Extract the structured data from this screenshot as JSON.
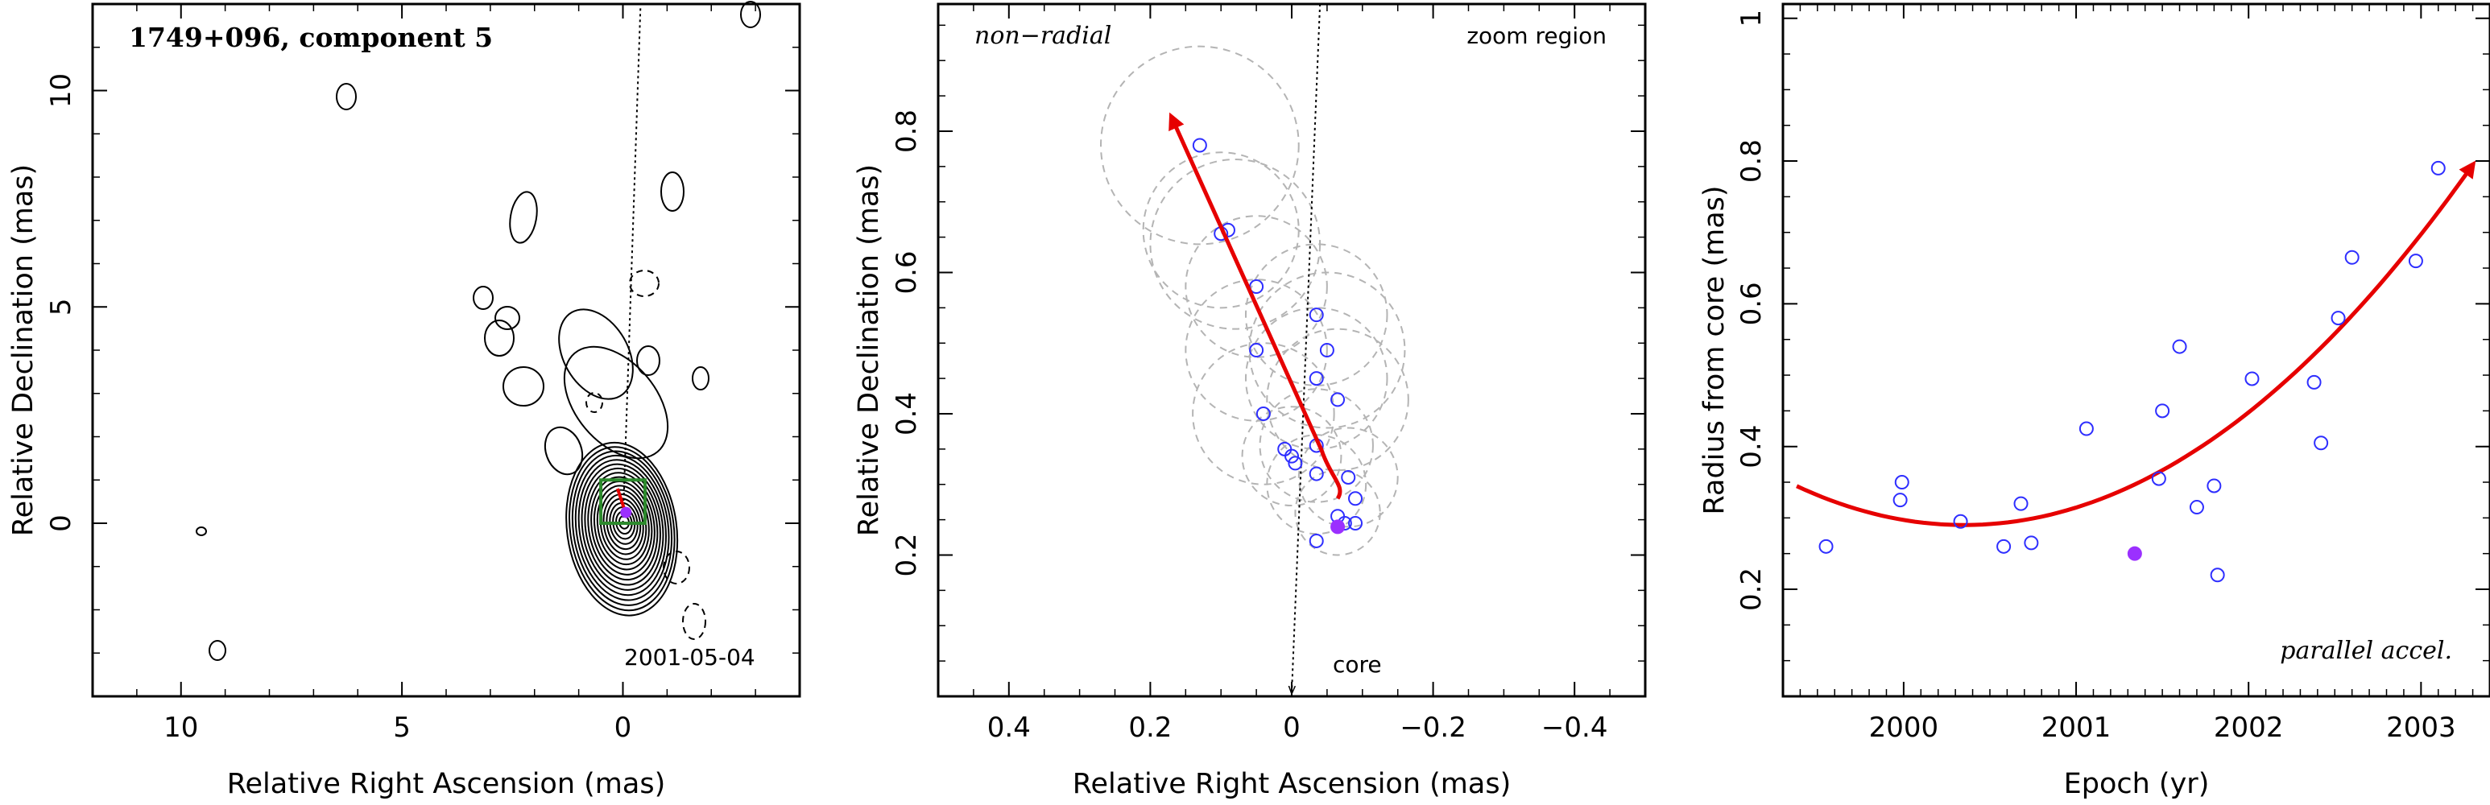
{
  "chart_data": [
    {
      "type": "contour",
      "title": "1749+096, component 5",
      "date_label": "2001-05-04",
      "xlabel": "Relative Right Ascension (mas)",
      "ylabel": "Relative Declination (mas)",
      "xlim": [
        12,
        -4
      ],
      "ylim": [
        -4,
        12
      ],
      "xticks": [
        10,
        5,
        0
      ],
      "yticks": [
        0,
        5,
        10
      ],
      "zoom_box": {
        "x": [
          0.5,
          -0.5
        ],
        "y": [
          0.0,
          1.0
        ],
        "color": "#2d8a2d"
      },
      "radial_line": {
        "from": [
          0,
          0
        ],
        "to": [
          -0.4,
          12
        ]
      },
      "component_marker": {
        "x": -0.07,
        "y": 0.25,
        "color": "#9b30ff"
      }
    },
    {
      "type": "scatter",
      "label_tl": "non−radial",
      "label_tr": "zoom region",
      "core_label": "core",
      "xlabel": "Relative Right Ascension (mas)",
      "ylabel": "Relative Declination (mas)",
      "xlim": [
        0.5,
        -0.5
      ],
      "ylim": [
        0.0,
        0.98
      ],
      "xticks": [
        0.4,
        0.2,
        0,
        -0.2,
        -0.4
      ],
      "yticks": [
        0.2,
        0.4,
        0.6,
        0.8
      ],
      "points": [
        [
          0.13,
          0.78
        ],
        [
          0.1,
          0.655
        ],
        [
          0.09,
          0.66
        ],
        [
          0.05,
          0.58
        ],
        [
          -0.035,
          0.54
        ],
        [
          0.05,
          0.49
        ],
        [
          -0.05,
          0.49
        ],
        [
          -0.035,
          0.45
        ],
        [
          -0.065,
          0.42
        ],
        [
          0.04,
          0.4
        ],
        [
          -0.035,
          0.355
        ],
        [
          0.01,
          0.35
        ],
        [
          0.0,
          0.34
        ],
        [
          -0.005,
          0.33
        ],
        [
          -0.035,
          0.315
        ],
        [
          -0.08,
          0.31
        ],
        [
          -0.09,
          0.28
        ],
        [
          -0.065,
          0.255
        ],
        [
          -0.075,
          0.245
        ],
        [
          -0.09,
          0.245
        ],
        [
          -0.035,
          0.22
        ]
      ],
      "circles": [
        {
          "x": 0.13,
          "y": 0.78,
          "r": 0.14
        },
        {
          "x": 0.1,
          "y": 0.66,
          "r": 0.11
        },
        {
          "x": 0.05,
          "y": 0.58,
          "r": 0.1
        },
        {
          "x": 0.08,
          "y": 0.64,
          "r": 0.12
        },
        {
          "x": -0.035,
          "y": 0.54,
          "r": 0.1
        },
        {
          "x": -0.035,
          "y": 0.45,
          "r": 0.1
        },
        {
          "x": 0.05,
          "y": 0.49,
          "r": 0.1
        },
        {
          "x": -0.05,
          "y": 0.49,
          "r": 0.11
        },
        {
          "x": 0.04,
          "y": 0.4,
          "r": 0.1
        },
        {
          "x": -0.065,
          "y": 0.42,
          "r": 0.1
        },
        {
          "x": -0.035,
          "y": 0.355,
          "r": 0.08
        },
        {
          "x": 0.0,
          "y": 0.34,
          "r": 0.07
        },
        {
          "x": -0.08,
          "y": 0.31,
          "r": 0.07
        },
        {
          "x": -0.065,
          "y": 0.26,
          "r": 0.06
        },
        {
          "x": -0.035,
          "y": 0.3,
          "r": 0.07
        }
      ],
      "highlight_point": {
        "x": -0.065,
        "y": 0.24,
        "color": "#9b30ff"
      },
      "fit_arrow": {
        "from": [
          -0.065,
          0.28
        ],
        "to": [
          0.17,
          0.82
        ],
        "color": "#e60000"
      },
      "radial_line": {
        "from": [
          -0.04,
          0.98
        ],
        "to": [
          0.0,
          0.0
        ]
      },
      "marker_color": "#2e2eff"
    },
    {
      "type": "scatter",
      "label_br": "parallel accel.",
      "xlabel": "Epoch (yr)",
      "ylabel": "Radius from core (mas)",
      "xlim": [
        1999.3,
        2003.4
      ],
      "ylim": [
        0.05,
        1.02
      ],
      "xticks": [
        2000,
        2001,
        2002,
        2003
      ],
      "yticks": [
        0.2,
        0.4,
        0.6,
        0.8,
        1
      ],
      "points": [
        [
          1999.55,
          0.26
        ],
        [
          1999.98,
          0.325
        ],
        [
          1999.99,
          0.35
        ],
        [
          2000.33,
          0.295
        ],
        [
          2000.58,
          0.26
        ],
        [
          2000.68,
          0.32
        ],
        [
          2000.74,
          0.265
        ],
        [
          2001.06,
          0.425
        ],
        [
          2001.48,
          0.355
        ],
        [
          2001.5,
          0.45
        ],
        [
          2001.6,
          0.54
        ],
        [
          2001.7,
          0.315
        ],
        [
          2001.8,
          0.345
        ],
        [
          2001.82,
          0.22
        ],
        [
          2002.02,
          0.495
        ],
        [
          2002.38,
          0.49
        ],
        [
          2002.42,
          0.405
        ],
        [
          2002.52,
          0.58
        ],
        [
          2002.6,
          0.665
        ],
        [
          2002.97,
          0.66
        ],
        [
          2003.1,
          0.79
        ]
      ],
      "highlight_point": {
        "x": 2001.34,
        "y": 0.25,
        "color": "#9b30ff"
      },
      "fit_curve": {
        "type": "quadratic",
        "vertex_x": 2000.35,
        "vertex_y": 0.29,
        "a": 0.058,
        "x_range": [
          1999.38,
          2003.3
        ],
        "color": "#e60000"
      },
      "marker_color": "#2e2eff"
    }
  ]
}
